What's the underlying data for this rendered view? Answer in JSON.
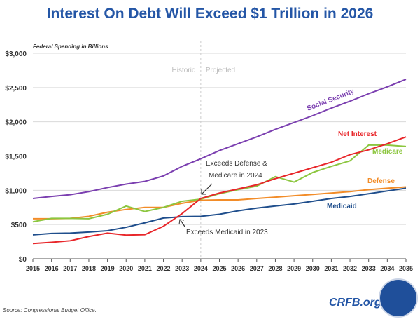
{
  "chart_data": {
    "type": "line",
    "title": "Interest On Debt Will Exceed $1 Trillion in 2026",
    "subtitle": "Federal Spending in Billions",
    "ylim": [
      0,
      3000
    ],
    "yticks": [
      "$0",
      "$500",
      "$1,000",
      "$1,500",
      "$2,000",
      "$2,500",
      "$3,000"
    ],
    "x": [
      2015,
      2016,
      2017,
      2018,
      2019,
      2020,
      2021,
      2022,
      2023,
      2024,
      2025,
      2026,
      2027,
      2028,
      2029,
      2030,
      2031,
      2032,
      2033,
      2034,
      2035
    ],
    "divider_labels": [
      "Historic",
      "Projected"
    ],
    "series": [
      {
        "name": "Social Security",
        "color": "#7b3fb0",
        "values": [
          880,
          910,
          935,
          980,
          1040,
          1090,
          1130,
          1210,
          1350,
          1460,
          1580,
          1680,
          1780,
          1890,
          1990,
          2090,
          2200,
          2300,
          2410,
          2510,
          2620
        ]
      },
      {
        "name": "Net Interest",
        "color": "#e8262a",
        "values": [
          223,
          240,
          263,
          325,
          375,
          345,
          352,
          475,
          660,
          880,
          960,
          1020,
          1080,
          1170,
          1250,
          1330,
          1410,
          1520,
          1590,
          1680,
          1780
        ]
      },
      {
        "name": "Medicare",
        "color": "#8cc63f",
        "values": [
          540,
          590,
          590,
          585,
          650,
          770,
          690,
          750,
          840,
          870,
          950,
          1010,
          1060,
          1200,
          1120,
          1260,
          1350,
          1430,
          1660,
          1660,
          1640
        ]
      },
      {
        "name": "Defense",
        "color": "#f28c28",
        "values": [
          585,
          585,
          590,
          620,
          680,
          720,
          750,
          750,
          810,
          855,
          860,
          860,
          880,
          900,
          920,
          940,
          960,
          980,
          1010,
          1030,
          1050
        ]
      },
      {
        "name": "Medicaid",
        "color": "#1f4e8c",
        "values": [
          350,
          370,
          375,
          390,
          410,
          460,
          525,
          595,
          615,
          620,
          650,
          700,
          740,
          770,
          800,
          840,
          880,
          910,
          950,
          990,
          1030
        ]
      }
    ],
    "annotations": [
      "Exceeds Defense &",
      "Medicare in 2024",
      "Exceeds Medicaid in 2023"
    ]
  },
  "source": "Source: Congressional Budget Office.",
  "logo": "CRFB.org"
}
